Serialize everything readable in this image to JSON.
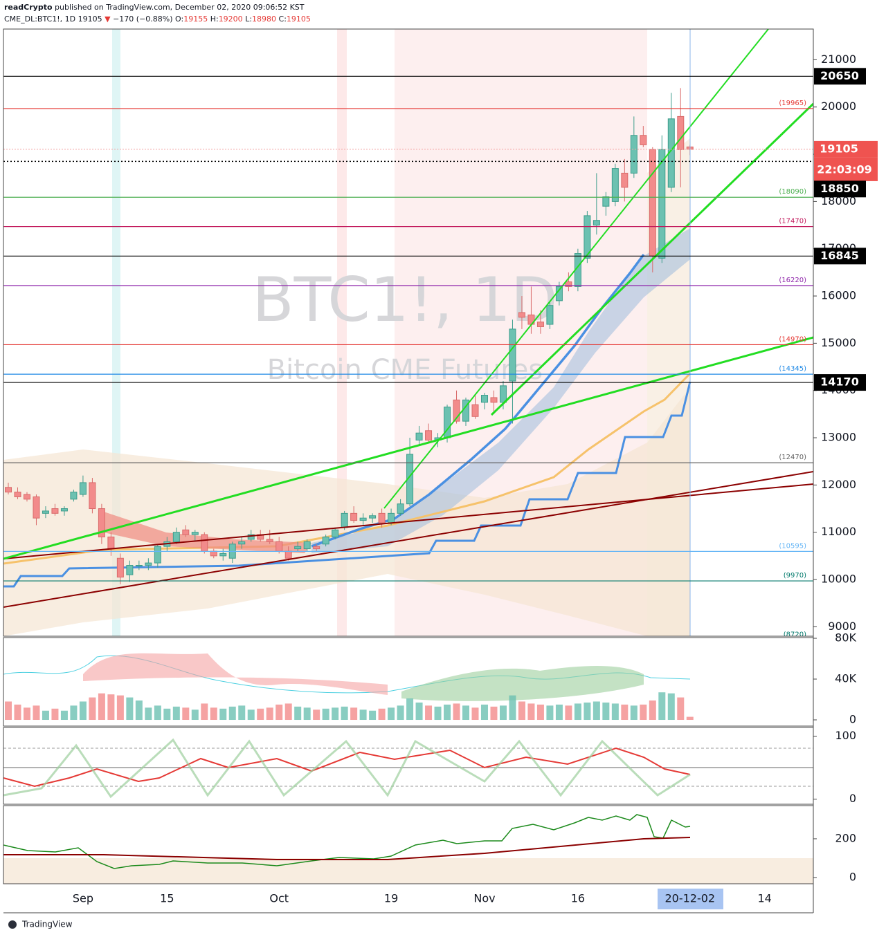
{
  "header": {
    "author": "readCrypto",
    "published": "published on TradingView.com, December 02, 2020 09:06:52 KST",
    "symbol": "CME_DL:BTC1!, 1D",
    "price": 19105,
    "arrow": "▼",
    "change": "−170 (−0.88%)",
    "ohlc": [
      [
        "O:",
        19155
      ],
      [
        "H:",
        19200
      ],
      [
        "L:",
        18980
      ],
      [
        "C:",
        19105
      ]
    ]
  },
  "watermark": {
    "symbol": "BTC1!, 1D",
    "description": "Bitcoin CME Futures"
  },
  "footer": "TradingView",
  "chart_data": [
    {
      "type": "candlestick",
      "up_color": "#6cc1b1",
      "down_color": "#f28b8b",
      "categories": [
        null,
        null,
        null,
        null,
        null,
        null,
        null,
        null,
        "Sep",
        null,
        null,
        null,
        null,
        null,
        null,
        null,
        null,
        "15",
        null,
        null,
        null,
        null,
        null,
        null,
        null,
        null,
        null,
        null,
        null,
        "Oct",
        null,
        null,
        null,
        null,
        null,
        null,
        null,
        null,
        null,
        null,
        null,
        "19",
        null,
        null,
        null,
        null,
        null,
        null,
        null,
        null,
        null,
        "Nov",
        null,
        null,
        null,
        null,
        null,
        null,
        null,
        null,
        null,
        "16",
        null,
        null,
        null,
        null,
        null,
        null,
        null,
        null,
        null,
        null,
        null,
        "20-12-02",
        null,
        null,
        null,
        null,
        null,
        null,
        null,
        "14"
      ],
      "open": [
        11950,
        11850,
        11800,
        11750,
        11400,
        11500,
        11450,
        11700,
        11800,
        12050,
        11500,
        10900,
        10450,
        10100,
        10300,
        10300,
        10350,
        10700,
        10800,
        11050,
        10950,
        10950,
        10600,
        10500,
        10450,
        10750,
        10850,
        10950,
        10850,
        10800,
        10600,
        10650,
        10650,
        10700,
        10750,
        10900,
        11100,
        11400,
        11250,
        11300,
        11400,
        11200,
        11400,
        11600,
        12950,
        13150,
        12950,
        13000,
        13800,
        13350,
        13700,
        13750,
        13850,
        13750,
        14200,
        15650,
        15600,
        15450,
        15400,
        15900,
        16300,
        16200,
        16800,
        17500,
        17900,
        18000,
        18600,
        18600,
        19400,
        19100,
        16800,
        18300,
        19800,
        19155,
        null,
        null,
        null,
        null,
        null,
        null,
        null,
        null
      ],
      "high": [
        12050,
        11950,
        11850,
        11800,
        11550,
        11600,
        11550,
        11900,
        12200,
        12150,
        11600,
        11000,
        10550,
        10400,
        10400,
        10450,
        10750,
        10900,
        11100,
        11150,
        11050,
        11000,
        10650,
        10650,
        10800,
        10900,
        11050,
        11050,
        11050,
        10900,
        10700,
        10800,
        10850,
        10750,
        10950,
        11100,
        11450,
        11550,
        11400,
        11400,
        11500,
        11500,
        11700,
        13000,
        13250,
        13300,
        13100,
        13700,
        14000,
        13850,
        13900,
        13950,
        14000,
        14200,
        15500,
        16000,
        16200,
        15700,
        15900,
        16300,
        16500,
        17000,
        17800,
        18600,
        18200,
        18800,
        18900,
        19800,
        19600,
        19150,
        19400,
        20300,
        20400,
        19200,
        null,
        null,
        null,
        null,
        null,
        null,
        null,
        null
      ],
      "low": [
        11800,
        11700,
        11650,
        11150,
        11300,
        11350,
        11350,
        11650,
        11750,
        11400,
        10750,
        10500,
        9900,
        9950,
        10200,
        10200,
        10250,
        10600,
        10750,
        10900,
        10800,
        10550,
        10450,
        10400,
        10350,
        10650,
        10800,
        10800,
        10750,
        10550,
        10400,
        10600,
        10600,
        10600,
        10700,
        10850,
        11050,
        11200,
        11150,
        11200,
        11100,
        11150,
        11350,
        11550,
        12850,
        12900,
        12800,
        12900,
        13300,
        13250,
        13400,
        13600,
        13500,
        13600,
        13300,
        15300,
        15200,
        15200,
        15300,
        15800,
        16100,
        16100,
        16700,
        17300,
        17700,
        17900,
        18000,
        18500,
        19150,
        16500,
        16700,
        18200,
        18300,
        18980,
        null,
        null,
        null,
        null,
        null,
        null,
        null,
        null
      ],
      "close": [
        11850,
        11750,
        11700,
        11300,
        11450,
        11400,
        11500,
        11850,
        12050,
        11500,
        10900,
        10650,
        10050,
        10300,
        10300,
        10350,
        10700,
        10800,
        11000,
        10950,
        11000,
        10600,
        10500,
        10550,
        10750,
        10800,
        10950,
        10850,
        10800,
        10600,
        10450,
        10700,
        10800,
        10650,
        10900,
        11050,
        11400,
        11250,
        11300,
        11350,
        11200,
        11400,
        11600,
        12650,
        13100,
        12950,
        13000,
        13650,
        13350,
        13800,
        13450,
        13900,
        13750,
        14100,
        15300,
        15550,
        15400,
        15350,
        15800,
        16200,
        16200,
        16900,
        17700,
        17600,
        18100,
        18700,
        18300,
        19400,
        19200,
        16850,
        19100,
        19750,
        19100,
        19105,
        null,
        null,
        null,
        null,
        null,
        null,
        null,
        null
      ],
      "ylim": [
        8800,
        21650
      ],
      "yticks": [
        9000,
        10000,
        11000,
        12000,
        13000,
        14000,
        15000,
        16000,
        17000,
        18000,
        19000,
        20000,
        21000
      ],
      "levels": [
        {
          "value": 19965,
          "label": "(19965)",
          "color": "#e53935"
        },
        {
          "value": 18090,
          "label": "(18090)",
          "color": "#4caf50"
        },
        {
          "value": 17470,
          "label": "(17470)",
          "color": "#c2185b"
        },
        {
          "value": 16220,
          "label": "(16220)",
          "color": "#8e24aa"
        },
        {
          "value": 14970,
          "label": "(14970)",
          "color": "#e53935"
        },
        {
          "value": 14345,
          "label": "(14345)",
          "color": "#1e88e5"
        },
        {
          "value": 12470,
          "label": "(12470)",
          "color": "#616161"
        },
        {
          "value": 10595,
          "label": "(10595)",
          "color": "#64b5f6"
        },
        {
          "value": 9970,
          "label": "(9970)",
          "color": "#00796b"
        },
        {
          "value": 8720,
          "label": "(8720)",
          "color": "#00796b"
        }
      ],
      "key_levels": [
        20650,
        16845,
        14170
      ],
      "last_price": 19105,
      "countdown": "22:03:09",
      "crosshair_price": 18850
    },
    {
      "type": "bar",
      "values": [
        18000,
        15000,
        12000,
        14000,
        9000,
        11000,
        9000,
        14000,
        18000,
        22000,
        26000,
        25000,
        24000,
        22000,
        19000,
        12000,
        14000,
        11000,
        13000,
        12000,
        10000,
        16000,
        12000,
        11000,
        13000,
        14000,
        10000,
        11000,
        12000,
        15000,
        16000,
        13000,
        12000,
        10000,
        11000,
        12000,
        13000,
        12000,
        10000,
        9000,
        11000,
        12000,
        14000,
        21000,
        17000,
        14000,
        13000,
        15000,
        16000,
        14000,
        12000,
        15000,
        13000,
        14000,
        24000,
        18000,
        16000,
        15000,
        14000,
        15000,
        14000,
        16000,
        17000,
        18000,
        17000,
        16000,
        15000,
        14000,
        15000,
        19000,
        27000,
        26000,
        22000,
        3000,
        null,
        null,
        null,
        null,
        null,
        null,
        null,
        null
      ],
      "ylim": [
        -6100,
        80700
      ],
      "yticks": [
        {
          "value": 80000,
          "label": "80K"
        },
        {
          "value": 40000,
          "label": "40K"
        },
        0
      ]
    },
    {
      "type": "line",
      "ylim": [
        -8,
        114
      ],
      "yticks": [
        0,
        100
      ]
    },
    {
      "type": "line",
      "ylim": [
        -32,
        371
      ],
      "yticks": [
        0,
        200
      ]
    }
  ]
}
